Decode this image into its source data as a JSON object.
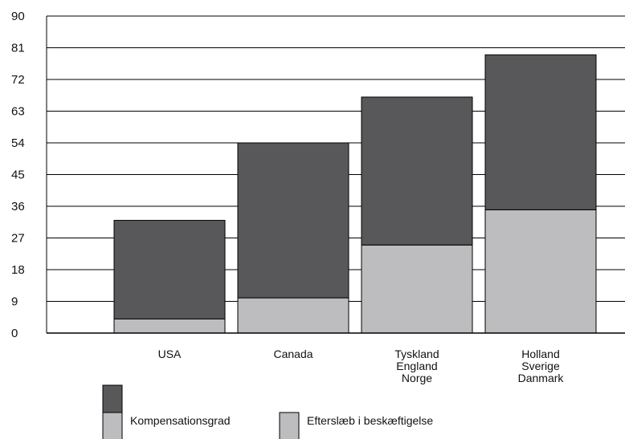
{
  "chart_data": {
    "type": "bar",
    "stacked": true,
    "categories": [
      [
        "USA"
      ],
      [
        "Canada"
      ],
      [
        "Tyskland",
        "England",
        "Norge"
      ],
      [
        "Holland",
        "Sverige",
        "Danmark"
      ]
    ],
    "series": [
      {
        "name": "Efterslæb i beskæftigelse",
        "values": [
          4,
          10,
          25,
          35
        ],
        "color": "#bdbdbf"
      },
      {
        "name": "",
        "values": [
          28,
          44,
          42,
          44
        ],
        "color": "#58585a"
      }
    ],
    "y_ticks": [
      0,
      9,
      18,
      27,
      36,
      45,
      54,
      63,
      72,
      81,
      90
    ],
    "ylim": [
      0,
      90
    ],
    "grid": true,
    "legend": {
      "placement": "bottom-left",
      "entries": [
        {
          "swatch_color": "#58585a",
          "label": ""
        },
        {
          "swatch_color": "#bdbdbf",
          "label": "Kompensationsgrad"
        },
        {
          "swatch_color": "#bdbdbf",
          "label": "Efterslæb i beskæftigelse"
        }
      ]
    }
  }
}
